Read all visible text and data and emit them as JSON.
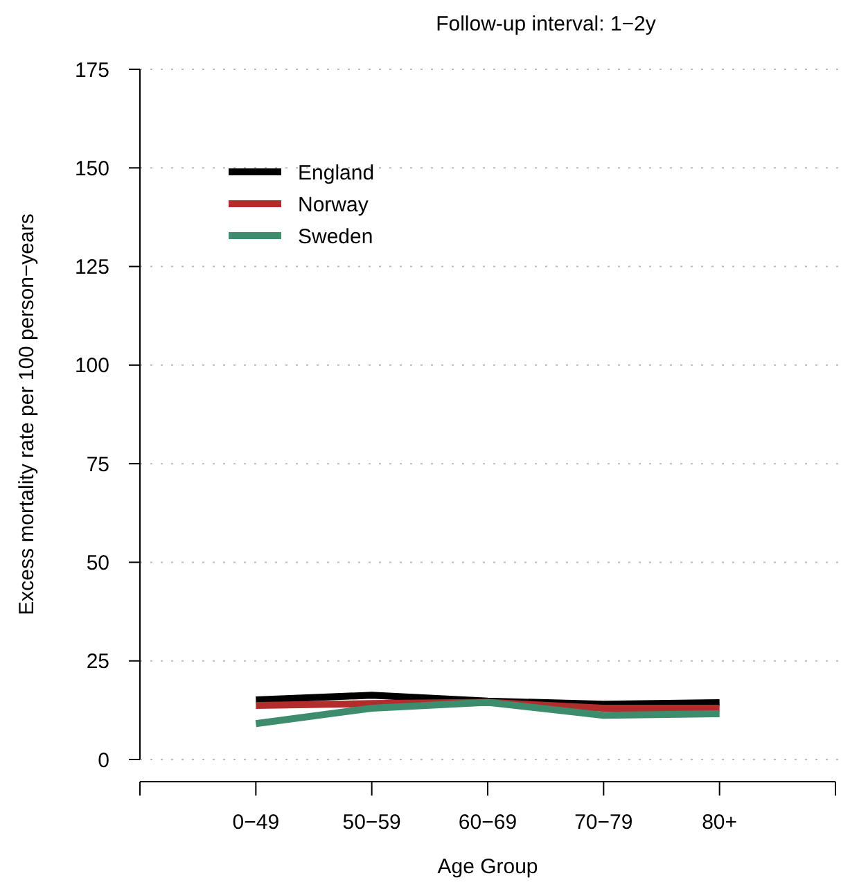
{
  "chart_data": {
    "type": "line",
    "title": "Follow-up interval: 1−2y",
    "xlabel": "Age Group",
    "ylabel": "Excess mortality rate per 100 person−years",
    "categories": [
      "0−49",
      "50−59",
      "60−69",
      "70−79",
      "80+"
    ],
    "series": [
      {
        "name": "England",
        "color": "#000000",
        "values": [
          15.1,
          16.3,
          14.8,
          14,
          14.4
        ]
      },
      {
        "name": "Norway",
        "color": "#b22c2c",
        "values": [
          13.7,
          14.2,
          14.5,
          13,
          13
        ]
      },
      {
        "name": "Sweden",
        "color": "#3d8c6e",
        "values": [
          9.1,
          13,
          14.5,
          11.2,
          11.6
        ]
      }
    ],
    "ylim": [
      0,
      175
    ],
    "yticks": [
      0,
      25,
      50,
      75,
      100,
      125,
      150,
      175
    ],
    "grid": "y",
    "legend": "top left",
    "line_style": "solid"
  }
}
